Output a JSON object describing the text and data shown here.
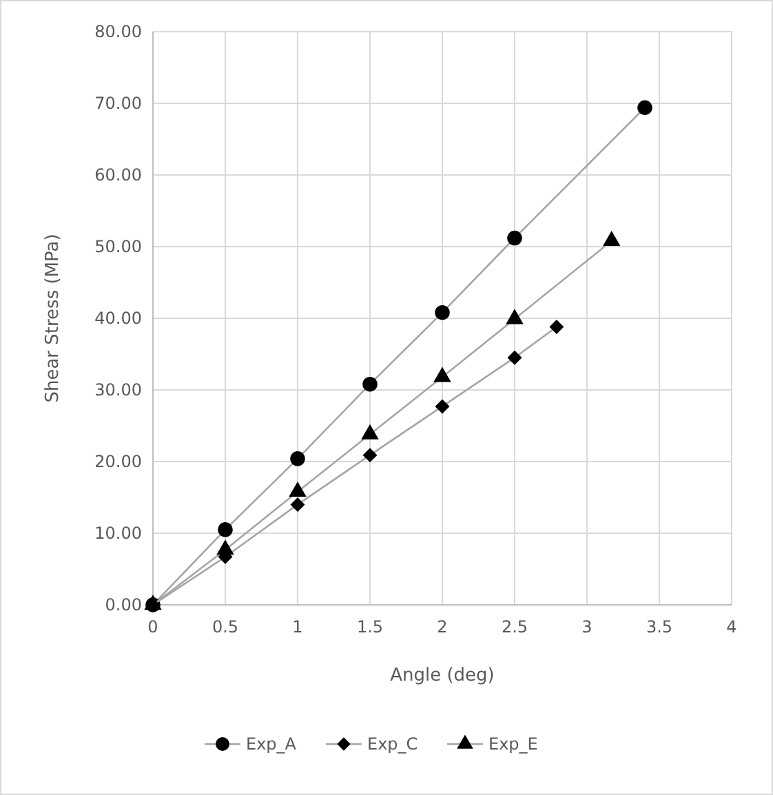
{
  "chart_data": {
    "type": "line",
    "xlabel": "Angle (deg)",
    "ylabel": "Shear Stress (MPa)",
    "xlim": [
      0,
      4
    ],
    "xticks": [
      0,
      0.5,
      1,
      1.5,
      2,
      2.5,
      3,
      3.5,
      4
    ],
    "ylim": [
      0,
      80
    ],
    "yticks": [
      {
        "value": 0,
        "label": "0.00"
      },
      {
        "value": 10,
        "label": "10.00"
      },
      {
        "value": 20,
        "label": "20.00"
      },
      {
        "value": 30,
        "label": "30.00"
      },
      {
        "value": 40,
        "label": "40.00"
      },
      {
        "value": 50,
        "label": "50.00"
      },
      {
        "value": 60,
        "label": "60.00"
      },
      {
        "value": 70,
        "label": "70.00"
      },
      {
        "value": 80,
        "label": "80.00"
      }
    ],
    "grid": true,
    "legend": "bottom",
    "line_style": "solid",
    "series": [
      {
        "name": "Exp_A",
        "color": "#000000",
        "marker": "circle",
        "x": [
          0,
          0.5,
          1,
          1.5,
          2,
          2.5,
          3.4
        ],
        "values": [
          0,
          10.5,
          20.4,
          30.8,
          40.8,
          51.2,
          69.4
        ]
      },
      {
        "name": "Exp_C",
        "color": "#000000",
        "marker": "diamond",
        "x": [
          0,
          0.5,
          1,
          1.5,
          2,
          2.5,
          2.79
        ],
        "values": [
          0,
          6.7,
          14,
          20.9,
          27.7,
          34.5,
          38.8
        ]
      },
      {
        "name": "Exp_E",
        "color": "#000000",
        "marker": "triangle",
        "x": [
          0,
          0.5,
          1,
          1.5,
          2,
          2.5,
          3.17
        ],
        "values": [
          0,
          7.7,
          15.8,
          23.8,
          31.8,
          39.9,
          50.8
        ]
      }
    ]
  }
}
